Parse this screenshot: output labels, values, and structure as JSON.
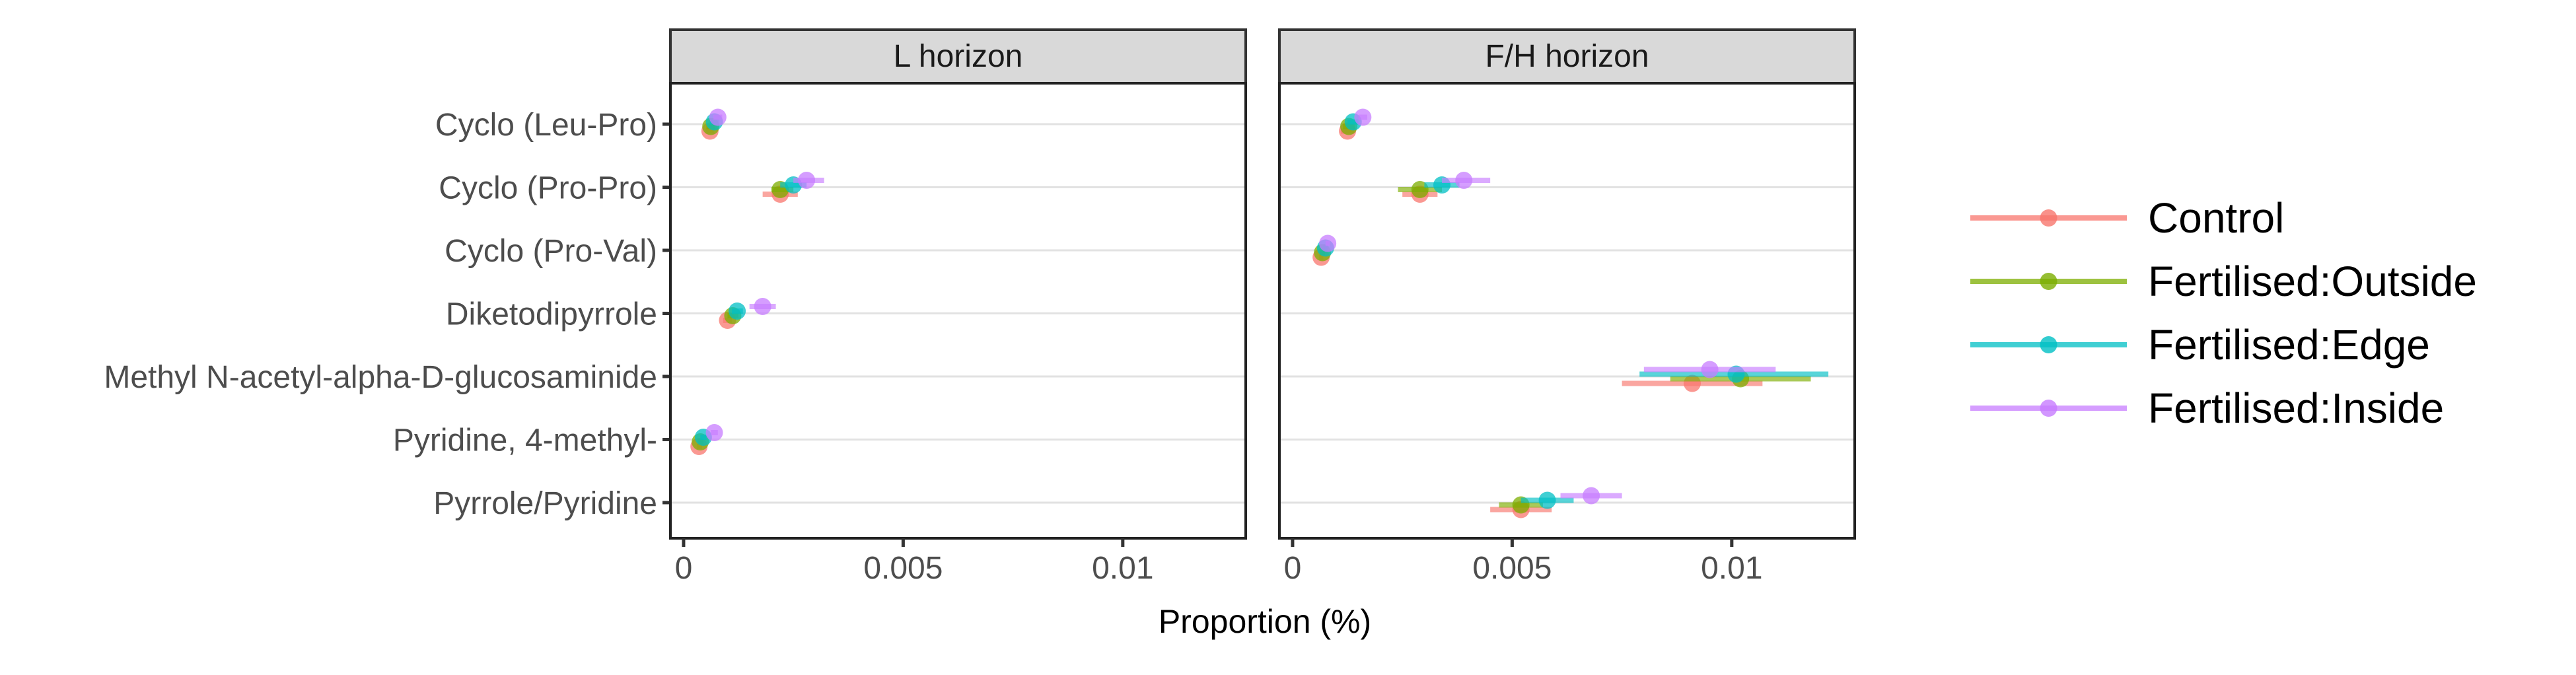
{
  "chart_data": {
    "type": "scatter",
    "subtype": "point-range dot plot, faceted",
    "xlabel": "Proportion (%)",
    "ylabel": "",
    "xlim": [
      -0.0003,
      0.0128
    ],
    "x_ticks": [
      0,
      0.005,
      0.01
    ],
    "x_tick_labels": [
      "0",
      "0.005",
      "0.01"
    ],
    "categories": [
      "Cyclo (Leu-Pro)",
      "Cyclo (Pro-Pro)",
      "Cyclo (Pro-Val)",
      "Diketodipyrrole",
      "Methyl N-acetyl-alpha-D-glucosaminide",
      "Pyridine, 4-methyl-",
      "Pyrrole/Pyridine"
    ],
    "grid": "horizontal major lines",
    "legend_position": "right",
    "series": [
      {
        "name": "Control",
        "color": "#F8766D"
      },
      {
        "name": "Fertilised:Outside",
        "color": "#7CAE00"
      },
      {
        "name": "Fertilised:Edge",
        "color": "#00BFC4"
      },
      {
        "name": "Fertilised:Inside",
        "color": "#C77CFF"
      }
    ],
    "facets": [
      {
        "label": "L horizon",
        "points": [
          {
            "category": "Cyclo (Leu-Pro)",
            "series": "Control",
            "x": 0.0006,
            "xmin": 0.0005,
            "xmax": 0.0007
          },
          {
            "category": "Cyclo (Leu-Pro)",
            "series": "Fertilised:Outside",
            "x": 0.00062,
            "xmin": 0.00052,
            "xmax": 0.00072
          },
          {
            "category": "Cyclo (Leu-Pro)",
            "series": "Fertilised:Edge",
            "x": 0.0007,
            "xmin": 0.0006,
            "xmax": 0.0008
          },
          {
            "category": "Cyclo (Leu-Pro)",
            "series": "Fertilised:Inside",
            "x": 0.00078,
            "xmin": 0.00068,
            "xmax": 0.00088
          },
          {
            "category": "Cyclo (Pro-Pro)",
            "series": "Control",
            "x": 0.0022,
            "xmin": 0.0018,
            "xmax": 0.0026
          },
          {
            "category": "Cyclo (Pro-Pro)",
            "series": "Fertilised:Outside",
            "x": 0.0022,
            "xmin": 0.002,
            "xmax": 0.0025
          },
          {
            "category": "Cyclo (Pro-Pro)",
            "series": "Fertilised:Edge",
            "x": 0.0025,
            "xmin": 0.0022,
            "xmax": 0.0028
          },
          {
            "category": "Cyclo (Pro-Pro)",
            "series": "Fertilised:Inside",
            "x": 0.0028,
            "xmin": 0.0025,
            "xmax": 0.0032
          },
          {
            "category": "Cyclo (Pro-Val)",
            "series": "Control",
            "x": null,
            "xmin": null,
            "xmax": null
          },
          {
            "category": "Cyclo (Pro-Val)",
            "series": "Fertilised:Outside",
            "x": null,
            "xmin": null,
            "xmax": null
          },
          {
            "category": "Cyclo (Pro-Val)",
            "series": "Fertilised:Edge",
            "x": null,
            "xmin": null,
            "xmax": null
          },
          {
            "category": "Cyclo (Pro-Val)",
            "series": "Fertilised:Inside",
            "x": null,
            "xmin": null,
            "xmax": null
          },
          {
            "category": "Diketodipyrrole",
            "series": "Control",
            "x": 0.001,
            "xmin": 0.0009,
            "xmax": 0.0011
          },
          {
            "category": "Diketodipyrrole",
            "series": "Fertilised:Outside",
            "x": 0.00112,
            "xmin": 0.001,
            "xmax": 0.00125
          },
          {
            "category": "Diketodipyrrole",
            "series": "Fertilised:Edge",
            "x": 0.00122,
            "xmin": 0.0011,
            "xmax": 0.00135
          },
          {
            "category": "Diketodipyrrole",
            "series": "Fertilised:Inside",
            "x": 0.0018,
            "xmin": 0.0015,
            "xmax": 0.0021
          },
          {
            "category": "Methyl N-acetyl-alpha-D-glucosaminide",
            "series": "Control",
            "x": null,
            "xmin": null,
            "xmax": null
          },
          {
            "category": "Methyl N-acetyl-alpha-D-glucosaminide",
            "series": "Fertilised:Outside",
            "x": null,
            "xmin": null,
            "xmax": null
          },
          {
            "category": "Methyl N-acetyl-alpha-D-glucosaminide",
            "series": "Fertilised:Edge",
            "x": null,
            "xmin": null,
            "xmax": null
          },
          {
            "category": "Methyl N-acetyl-alpha-D-glucosaminide",
            "series": "Fertilised:Inside",
            "x": null,
            "xmin": null,
            "xmax": null
          },
          {
            "category": "Pyridine, 4-methyl-",
            "series": "Control",
            "x": 0.00035,
            "xmin": 0.0003,
            "xmax": 0.00042
          },
          {
            "category": "Pyridine, 4-methyl-",
            "series": "Fertilised:Outside",
            "x": 0.00038,
            "xmin": 0.00032,
            "xmax": 0.00045
          },
          {
            "category": "Pyridine, 4-methyl-",
            "series": "Fertilised:Edge",
            "x": 0.00045,
            "xmin": 0.00038,
            "xmax": 0.00052
          },
          {
            "category": "Pyridine, 4-methyl-",
            "series": "Fertilised:Inside",
            "x": 0.0007,
            "xmin": 0.00062,
            "xmax": 0.00078
          },
          {
            "category": "Pyrrole/Pyridine",
            "series": "Control",
            "x": null,
            "xmin": null,
            "xmax": null
          },
          {
            "category": "Pyrrole/Pyridine",
            "series": "Fertilised:Outside",
            "x": null,
            "xmin": null,
            "xmax": null
          },
          {
            "category": "Pyrrole/Pyridine",
            "series": "Fertilised:Edge",
            "x": null,
            "xmin": null,
            "xmax": null
          },
          {
            "category": "Pyrrole/Pyridine",
            "series": "Fertilised:Inside",
            "x": null,
            "xmin": null,
            "xmax": null
          }
        ]
      },
      {
        "label": "F/H horizon",
        "points": [
          {
            "category": "Cyclo (Leu-Pro)",
            "series": "Control",
            "x": 0.00125,
            "xmin": 0.0011,
            "xmax": 0.0014
          },
          {
            "category": "Cyclo (Leu-Pro)",
            "series": "Fertilised:Outside",
            "x": 0.00128,
            "xmin": 0.00115,
            "xmax": 0.00142
          },
          {
            "category": "Cyclo (Leu-Pro)",
            "series": "Fertilised:Edge",
            "x": 0.00138,
            "xmin": 0.00125,
            "xmax": 0.0015
          },
          {
            "category": "Cyclo (Leu-Pro)",
            "series": "Fertilised:Inside",
            "x": 0.0016,
            "xmin": 0.0015,
            "xmax": 0.0017
          },
          {
            "category": "Cyclo (Pro-Pro)",
            "series": "Control",
            "x": 0.0029,
            "xmin": 0.0025,
            "xmax": 0.0033
          },
          {
            "category": "Cyclo (Pro-Pro)",
            "series": "Fertilised:Outside",
            "x": 0.0029,
            "xmin": 0.0024,
            "xmax": 0.0034
          },
          {
            "category": "Cyclo (Pro-Pro)",
            "series": "Fertilised:Edge",
            "x": 0.0034,
            "xmin": 0.003,
            "xmax": 0.0038
          },
          {
            "category": "Cyclo (Pro-Pro)",
            "series": "Fertilised:Inside",
            "x": 0.0039,
            "xmin": 0.0034,
            "xmax": 0.0045
          },
          {
            "category": "Cyclo (Pro-Val)",
            "series": "Control",
            "x": 0.00065,
            "xmin": 0.0006,
            "xmax": 0.0007
          },
          {
            "category": "Cyclo (Pro-Val)",
            "series": "Fertilised:Outside",
            "x": 0.00068,
            "xmin": 0.00062,
            "xmax": 0.00074
          },
          {
            "category": "Cyclo (Pro-Val)",
            "series": "Fertilised:Edge",
            "x": 0.00075,
            "xmin": 0.0007,
            "xmax": 0.0008
          },
          {
            "category": "Cyclo (Pro-Val)",
            "series": "Fertilised:Inside",
            "x": 0.0008,
            "xmin": 0.00075,
            "xmax": 0.00085
          },
          {
            "category": "Diketodipyrrole",
            "series": "Control",
            "x": null,
            "xmin": null,
            "xmax": null
          },
          {
            "category": "Diketodipyrrole",
            "series": "Fertilised:Outside",
            "x": null,
            "xmin": null,
            "xmax": null
          },
          {
            "category": "Diketodipyrrole",
            "series": "Fertilised:Edge",
            "x": null,
            "xmin": null,
            "xmax": null
          },
          {
            "category": "Diketodipyrrole",
            "series": "Fertilised:Inside",
            "x": null,
            "xmin": null,
            "xmax": null
          },
          {
            "category": "Methyl N-acetyl-alpha-D-glucosaminide",
            "series": "Control",
            "x": 0.0091,
            "xmin": 0.0075,
            "xmax": 0.0107
          },
          {
            "category": "Methyl N-acetyl-alpha-D-glucosaminide",
            "series": "Fertilised:Outside",
            "x": 0.0102,
            "xmin": 0.0086,
            "xmax": 0.0118
          },
          {
            "category": "Methyl N-acetyl-alpha-D-glucosaminide",
            "series": "Fertilised:Edge",
            "x": 0.0101,
            "xmin": 0.0079,
            "xmax": 0.0122
          },
          {
            "category": "Methyl N-acetyl-alpha-D-glucosaminide",
            "series": "Fertilised:Inside",
            "x": 0.0095,
            "xmin": 0.008,
            "xmax": 0.011
          },
          {
            "category": "Pyridine, 4-methyl-",
            "series": "Control",
            "x": null,
            "xmin": null,
            "xmax": null
          },
          {
            "category": "Pyridine, 4-methyl-",
            "series": "Fertilised:Outside",
            "x": null,
            "xmin": null,
            "xmax": null
          },
          {
            "category": "Pyridine, 4-methyl-",
            "series": "Fertilised:Edge",
            "x": null,
            "xmin": null,
            "xmax": null
          },
          {
            "category": "Pyridine, 4-methyl-",
            "series": "Fertilised:Inside",
            "x": null,
            "xmin": null,
            "xmax": null
          },
          {
            "category": "Pyrrole/Pyridine",
            "series": "Control",
            "x": 0.0052,
            "xmin": 0.0045,
            "xmax": 0.0059
          },
          {
            "category": "Pyrrole/Pyridine",
            "series": "Fertilised:Outside",
            "x": 0.0052,
            "xmin": 0.0047,
            "xmax": 0.0057
          },
          {
            "category": "Pyrrole/Pyridine",
            "series": "Fertilised:Edge",
            "x": 0.0058,
            "xmin": 0.0052,
            "xmax": 0.0064
          },
          {
            "category": "Pyrrole/Pyridine",
            "series": "Fertilised:Inside",
            "x": 0.0068,
            "xmin": 0.0061,
            "xmax": 0.0075
          }
        ]
      }
    ]
  }
}
